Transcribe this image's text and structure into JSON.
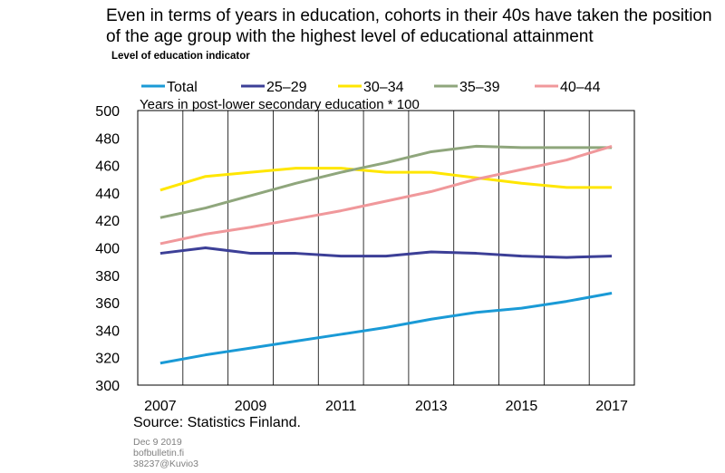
{
  "header": {
    "title": "Even in terms of years in education, cohorts in their 40s have taken the position of the age group with the highest level of educational attainment",
    "subtitle": "Level of education indicator"
  },
  "footer": {
    "source": "Source: Statistics Finland.",
    "date": "Dec 9 2019",
    "site": "bofbulletin.fi",
    "id": "38237@Kuvio3"
  },
  "chart_data": {
    "type": "line",
    "ylabel": "Years in post-lower secondary education * 100",
    "ylim": [
      300,
      500
    ],
    "yticks": [
      300,
      320,
      340,
      360,
      380,
      400,
      420,
      440,
      460,
      480,
      500
    ],
    "xlim": [
      2006.5,
      2017.5
    ],
    "xticks": [
      2007,
      2009,
      2011,
      2013,
      2015,
      2017
    ],
    "x": [
      2007,
      2008,
      2009,
      2010,
      2011,
      2012,
      2013,
      2014,
      2015,
      2016,
      2017
    ],
    "grid": "vertical",
    "legend": "top",
    "series": [
      {
        "name": "Total",
        "color": "#1a9ad6",
        "values": [
          316,
          322,
          327,
          332,
          337,
          342,
          348,
          353,
          356,
          361,
          367
        ]
      },
      {
        "name": "25–29",
        "color": "#3c3f97",
        "values": [
          396,
          400,
          396,
          396,
          394,
          394,
          397,
          396,
          394,
          393,
          394
        ]
      },
      {
        "name": "30–34",
        "color": "#ffe600",
        "values": [
          442,
          452,
          455,
          458,
          458,
          455,
          455,
          451,
          447,
          444,
          444
        ]
      },
      {
        "name": "35–39",
        "color": "#8fa67c",
        "values": [
          422,
          429,
          438,
          447,
          455,
          462,
          470,
          474,
          473,
          473,
          473
        ]
      },
      {
        "name": "40–44",
        "color": "#f0989b",
        "values": [
          403,
          410,
          415,
          421,
          427,
          434,
          441,
          450,
          457,
          464,
          474
        ]
      }
    ]
  }
}
